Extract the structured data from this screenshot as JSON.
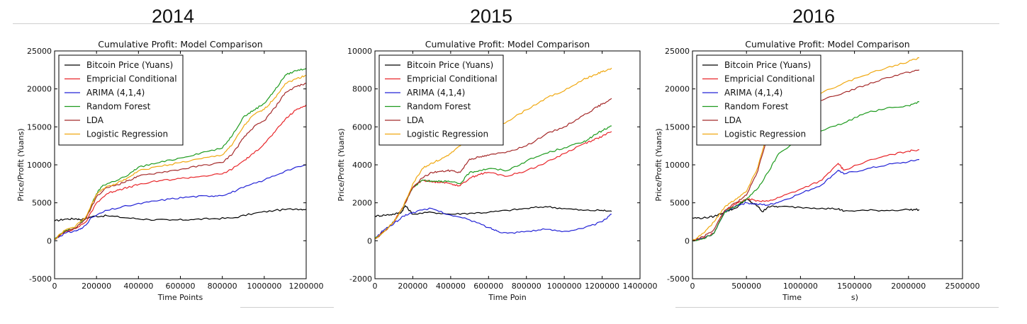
{
  "year_labels": [
    "2014",
    "2015",
    "2016"
  ],
  "chart_data": [
    {
      "type": "line",
      "title": "Cumulative Profit: Model Comparison",
      "xlabel": "Time Points",
      "ylabel": "Price/Profit (Yuans)",
      "xlim": [
        0,
        1200000
      ],
      "ylim": [
        -5000,
        25000
      ],
      "xticks": [
        0,
        200000,
        400000,
        600000,
        800000,
        1000000,
        1200000
      ],
      "yticks": [
        -5000,
        0,
        5000,
        10000,
        15000,
        20000,
        25000
      ],
      "legend_position": "top-left",
      "grid": false,
      "series": [
        {
          "name": "Bitcoin Price (Yuans)",
          "color": "#000000",
          "x": [
            0,
            50000,
            100000,
            130000,
            180000,
            250000,
            350000,
            450000,
            550000,
            650000,
            750000,
            850000,
            950000,
            1050000,
            1150000,
            1200000
          ],
          "y": [
            2600,
            2850,
            2900,
            2800,
            3200,
            3300,
            3000,
            2800,
            2700,
            2800,
            2900,
            3000,
            3600,
            4000,
            4200,
            4150
          ]
        },
        {
          "name": "Empricial Conditional",
          "color": "#e8262a",
          "x": [
            0,
            50000,
            100000,
            150000,
            200000,
            250000,
            300000,
            350000,
            400000,
            500000,
            600000,
            700000,
            800000,
            850000,
            900000,
            950000,
            1000000,
            1050000,
            1100000,
            1150000,
            1200000
          ],
          "y": [
            200,
            1200,
            1600,
            2500,
            5000,
            6200,
            6700,
            7000,
            7400,
            7900,
            8200,
            8500,
            8800,
            9500,
            10500,
            11500,
            12800,
            14300,
            16000,
            17200,
            17900
          ]
        },
        {
          "name": "ARIMA (4,1,4)",
          "color": "#2323d6",
          "x": [
            0,
            50000,
            100000,
            130000,
            180000,
            250000,
            350000,
            450000,
            550000,
            650000,
            750000,
            820000,
            900000,
            1000000,
            1100000,
            1200000
          ],
          "y": [
            200,
            1000,
            1300,
            1600,
            3100,
            4000,
            4600,
            5100,
            5500,
            5800,
            5900,
            6100,
            7000,
            8000,
            9200,
            10000
          ]
        },
        {
          "name": "Random Forest",
          "color": "#1f9b1f",
          "x": [
            0,
            50000,
            100000,
            150000,
            200000,
            230000,
            280000,
            350000,
            400000,
            500000,
            600000,
            700000,
            800000,
            850000,
            900000,
            950000,
            1000000,
            1050000,
            1100000,
            1150000,
            1200000
          ],
          "y": [
            200,
            1300,
            1700,
            3000,
            6200,
            7300,
            7800,
            8600,
            9700,
            10300,
            10900,
            11600,
            12200,
            14000,
            16300,
            17200,
            18100,
            19800,
            21800,
            22400,
            22700
          ]
        },
        {
          "name": "LDA",
          "color": "#a52a2a",
          "x": [
            0,
            50000,
            100000,
            150000,
            200000,
            250000,
            300000,
            350000,
            400000,
            500000,
            600000,
            700000,
            800000,
            850000,
            900000,
            950000,
            1000000,
            1050000,
            1100000,
            1150000,
            1200000
          ],
          "y": [
            200,
            1200,
            1700,
            2900,
            5800,
            7000,
            7400,
            7900,
            8500,
            9000,
            9400,
            9900,
            10300,
            11500,
            13500,
            15000,
            15800,
            17500,
            19500,
            20300,
            20700
          ]
        },
        {
          "name": "Logistic Regression",
          "color": "#f0a810",
          "x": [
            0,
            50000,
            100000,
            150000,
            200000,
            250000,
            300000,
            350000,
            400000,
            500000,
            600000,
            700000,
            800000,
            850000,
            900000,
            950000,
            1000000,
            1050000,
            1100000,
            1150000,
            1200000
          ],
          "y": [
            200,
            1400,
            1900,
            3200,
            6100,
            7200,
            7600,
            8300,
            9200,
            9800,
            10300,
            10800,
            11300,
            12800,
            15000,
            16600,
            17300,
            18800,
            20700,
            21300,
            21800
          ]
        }
      ]
    },
    {
      "type": "line",
      "title": "Cumulative Profit: Model Comparison",
      "xlabel": "Time Poin",
      "ylabel": "Price/Profit (Yuans)",
      "xlim": [
        0,
        1400000
      ],
      "ylim": [
        -2000,
        10000
      ],
      "xticks": [
        0,
        200000,
        400000,
        600000,
        800000,
        1000000,
        1200000,
        1400000
      ],
      "yticks": [
        -2000,
        0,
        2000,
        4000,
        6000,
        8000,
        10000
      ],
      "legend_position": "top-left",
      "grid": false,
      "series": [
        {
          "name": "Bitcoin Price (Yuans)",
          "color": "#000000",
          "x": [
            0,
            50000,
            100000,
            140000,
            160000,
            200000,
            300000,
            400000,
            500000,
            600000,
            700000,
            800000,
            900000,
            1000000,
            1100000,
            1200000,
            1250000
          ],
          "y": [
            1300,
            1350,
            1400,
            1500,
            1850,
            1400,
            1500,
            1400,
            1450,
            1500,
            1600,
            1700,
            1800,
            1700,
            1600,
            1600,
            1550
          ]
        },
        {
          "name": "Empricial Conditional",
          "color": "#e8262a",
          "x": [
            0,
            50000,
            100000,
            150000,
            200000,
            250000,
            300000,
            350000,
            400000,
            450000,
            500000,
            550000,
            600000,
            700000,
            800000,
            900000,
            1000000,
            1100000,
            1150000,
            1200000,
            1250000
          ],
          "y": [
            100,
            500,
            1000,
            1800,
            2800,
            3200,
            3100,
            3100,
            3000,
            2900,
            3300,
            3500,
            3600,
            3400,
            3700,
            4100,
            4600,
            5100,
            5300,
            5500,
            5750
          ]
        },
        {
          "name": "ARIMA (4,1,4)",
          "color": "#2323d6",
          "x": [
            0,
            50000,
            100000,
            150000,
            200000,
            300000,
            400000,
            500000,
            600000,
            650000,
            700000,
            800000,
            900000,
            1000000,
            1100000,
            1200000,
            1250000
          ],
          "y": [
            100,
            600,
            900,
            1300,
            1500,
            1700,
            1350,
            1100,
            700,
            500,
            400,
            500,
            600,
            500,
            650,
            1000,
            1400
          ]
        },
        {
          "name": "Random Forest",
          "color": "#1f9b1f",
          "x": [
            0,
            50000,
            100000,
            150000,
            200000,
            250000,
            300000,
            350000,
            400000,
            450000,
            500000,
            550000,
            600000,
            700000,
            800000,
            900000,
            1000000,
            1100000,
            1150000,
            1200000,
            1250000
          ],
          "y": [
            100,
            500,
            1000,
            1800,
            2800,
            3200,
            3150,
            3150,
            3100,
            3000,
            3600,
            3700,
            3800,
            3700,
            4200,
            4600,
            4900,
            5200,
            5500,
            5800,
            6050
          ]
        },
        {
          "name": "LDA",
          "color": "#a52a2a",
          "x": [
            0,
            50000,
            100000,
            150000,
            200000,
            250000,
            300000,
            350000,
            400000,
            450000,
            500000,
            550000,
            600000,
            700000,
            800000,
            900000,
            1000000,
            1100000,
            1150000,
            1200000,
            1250000
          ],
          "y": [
            100,
            500,
            1000,
            1800,
            2800,
            3300,
            3600,
            3650,
            3700,
            3600,
            4300,
            4400,
            4500,
            4700,
            5000,
            5600,
            6000,
            6600,
            6900,
            7200,
            7500
          ]
        },
        {
          "name": "Logistic Regression",
          "color": "#f0a810",
          "x": [
            0,
            50000,
            100000,
            150000,
            200000,
            250000,
            300000,
            350000,
            400000,
            450000,
            500000,
            550000,
            600000,
            700000,
            800000,
            900000,
            1000000,
            1100000,
            1150000,
            1200000,
            1250000
          ],
          "y": [
            100,
            500,
            1000,
            1800,
            3000,
            3800,
            4100,
            4300,
            4600,
            5000,
            5300,
            5600,
            5800,
            6300,
            6900,
            7500,
            7900,
            8500,
            8700,
            8900,
            9100
          ]
        }
      ]
    },
    {
      "type": "line",
      "title": "Cumulative Profit: Model Comparison",
      "xlabel": "Time                    s)",
      "ylabel": "Price/Profit (Yuans)",
      "xlim": [
        0,
        2500000
      ],
      "ylim": [
        -5000,
        25000
      ],
      "xticks": [
        0,
        500000,
        1000000,
        1500000,
        2000000,
        2500000
      ],
      "yticks": [
        -5000,
        0,
        5000,
        10000,
        15000,
        20000,
        25000
      ],
      "legend_position": "top-left",
      "grid": false,
      "series": [
        {
          "name": "Bitcoin Price (Yuans)",
          "color": "#000000",
          "x": [
            0,
            100000,
            200000,
            300000,
            400000,
            500000,
            550000,
            600000,
            650000,
            700000,
            800000,
            1000000,
            1200000,
            1350000,
            1400000,
            1600000,
            1800000,
            2000000,
            2100000
          ],
          "y": [
            3000,
            3000,
            3200,
            3800,
            4300,
            5500,
            5000,
            4600,
            3800,
            4500,
            4500,
            4400,
            4300,
            4200,
            3900,
            4000,
            4000,
            4100,
            4100
          ]
        },
        {
          "name": "Empricial Conditional",
          "color": "#e8262a",
          "x": [
            0,
            100000,
            200000,
            300000,
            400000,
            500000,
            600000,
            700000,
            800000,
            1000000,
            1200000,
            1350000,
            1400000,
            1600000,
            1800000,
            2000000,
            2100000
          ],
          "y": [
            0,
            300,
            1000,
            4000,
            4800,
            5500,
            5300,
            5200,
            5700,
            6800,
            8000,
            10200,
            9300,
            10400,
            11200,
            11800,
            12000
          ]
        },
        {
          "name": "ARIMA (4,1,4)",
          "color": "#2323d6",
          "x": [
            0,
            100000,
            200000,
            300000,
            400000,
            500000,
            600000,
            700000,
            800000,
            1000000,
            1200000,
            1350000,
            1400000,
            1600000,
            1800000,
            2000000,
            2100000
          ],
          "y": [
            0,
            300,
            1000,
            3800,
            4600,
            5000,
            4800,
            4700,
            5100,
            6200,
            7400,
            9300,
            8800,
            9400,
            10000,
            10400,
            10700
          ]
        },
        {
          "name": "Random Forest",
          "color": "#1f9b1f",
          "x": [
            0,
            100000,
            200000,
            300000,
            400000,
            500000,
            600000,
            700000,
            800000,
            1000000,
            1200000,
            1400000,
            1600000,
            1800000,
            2000000,
            2100000
          ],
          "y": [
            0,
            300,
            1000,
            3800,
            4500,
            5500,
            6800,
            9000,
            11500,
            13500,
            14500,
            15500,
            16800,
            17500,
            17800,
            18300
          ]
        },
        {
          "name": "LDA",
          "color": "#a52a2a",
          "x": [
            0,
            100000,
            200000,
            300000,
            400000,
            500000,
            600000,
            650000,
            700000,
            750000,
            800000,
            1000000,
            1200000,
            1400000,
            1600000,
            1800000,
            2000000,
            2100000
          ],
          "y": [
            0,
            500,
            1500,
            4000,
            5000,
            6000,
            9000,
            11500,
            14000,
            15500,
            16500,
            17500,
            18500,
            19500,
            20500,
            21500,
            22200,
            22500
          ]
        },
        {
          "name": "Logistic Regression",
          "color": "#f0a810",
          "x": [
            0,
            100000,
            200000,
            300000,
            400000,
            500000,
            600000,
            650000,
            700000,
            750000,
            800000,
            1000000,
            1200000,
            1400000,
            1600000,
            1800000,
            2000000,
            2100000
          ],
          "y": [
            0,
            1000,
            2500,
            4500,
            5500,
            6500,
            9500,
            12000,
            14500,
            16000,
            17000,
            18500,
            19500,
            20800,
            21800,
            22800,
            23600,
            24100
          ]
        }
      ]
    }
  ]
}
